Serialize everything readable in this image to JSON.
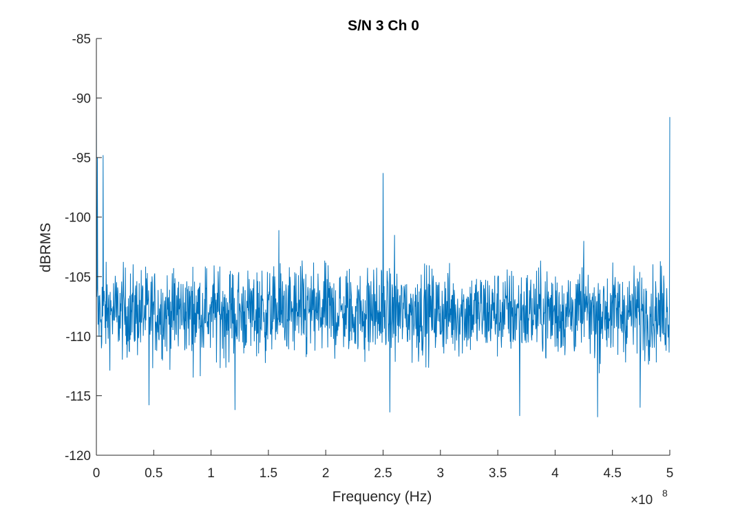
{
  "chart_data": {
    "type": "line",
    "title": "S/N 3 Ch 0",
    "xlabel": "Frequency (Hz)",
    "ylabel": "dBRMS",
    "x_exponent_base": "×10",
    "x_exponent_power": "8",
    "xlim": [
      0,
      5
    ],
    "ylim": [
      -120,
      -85
    ],
    "x_scale": 100000000,
    "x_ticks": [
      0,
      0.5,
      1,
      1.5,
      2,
      2.5,
      3,
      3.5,
      4,
      4.5,
      5
    ],
    "x_tick_labels": [
      "0",
      "0.5",
      "1",
      "1.5",
      "2",
      "2.5",
      "3",
      "3.5",
      "4",
      "4.5",
      "5"
    ],
    "y_ticks": [
      -120,
      -115,
      -110,
      -105,
      -100,
      -95,
      -90,
      -85
    ],
    "y_tick_labels": [
      "-120",
      "-115",
      "-110",
      "-105",
      "-100",
      "-95",
      "-90",
      "-85"
    ],
    "grid": false,
    "line_color": "#0072BD",
    "noise_floor_mean": -108,
    "noise_floor_range": [
      -116.8,
      -101.1
    ],
    "series": [
      {
        "peaks": [
          {
            "x": 0.0,
            "y": -89.5
          },
          {
            "x": 0.01,
            "y": -95.0
          },
          {
            "x": 0.06,
            "y": -94.8
          },
          {
            "x": 1.59,
            "y": -101.1
          },
          {
            "x": 2.5,
            "y": -96.3
          },
          {
            "x": 2.6,
            "y": -101.5
          },
          {
            "x": 4.25,
            "y": -102.0
          },
          {
            "x": 5.0,
            "y": -91.6
          },
          {
            "x": 0.46,
            "y": -115.8
          },
          {
            "x": 1.21,
            "y": -116.2
          },
          {
            "x": 2.56,
            "y": -116.4
          },
          {
            "x": 3.69,
            "y": -116.7
          },
          {
            "x": 4.37,
            "y": -116.8
          },
          {
            "x": 4.74,
            "y": -116.0
          }
        ]
      }
    ]
  }
}
